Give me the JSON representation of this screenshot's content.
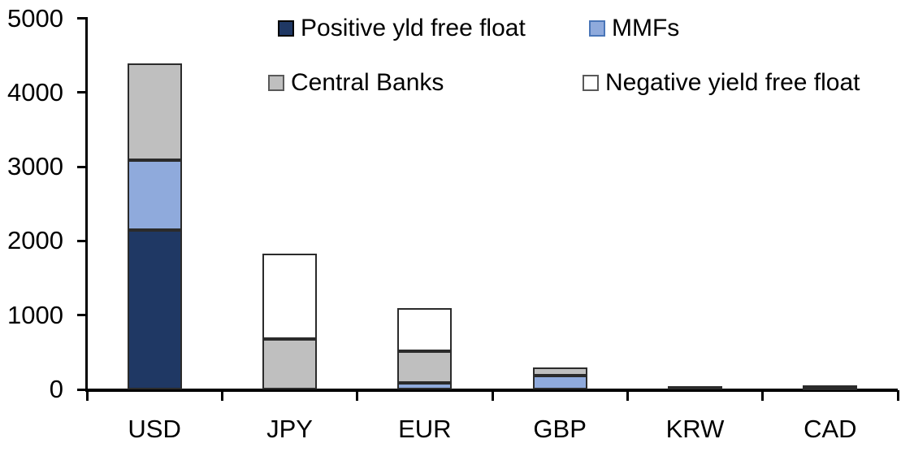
{
  "chart_data": {
    "type": "bar",
    "subtype": "stacked-vertical",
    "title": "",
    "xlabel": "",
    "ylabel": "",
    "categories": [
      "USD",
      "JPY",
      "EUR",
      "GBP",
      "KRW",
      "CAD"
    ],
    "series": [
      {
        "name": "Positive yld free float",
        "color": "#1F3864",
        "swatch_border": "#000000",
        "values": [
          2150,
          0,
          0,
          0,
          40,
          30
        ]
      },
      {
        "name": "MMFs",
        "color": "#8FAADC",
        "swatch_border": "#4A76B8",
        "values": [
          940,
          0,
          90,
          190,
          0,
          0
        ]
      },
      {
        "name": "Central Banks",
        "color": "#BFBFBF",
        "swatch_border": "#595959",
        "values": [
          1300,
          680,
          420,
          110,
          0,
          30
        ]
      },
      {
        "name": "Negative yield free float",
        "color": "#FFFFFF",
        "swatch_border": "#595959",
        "values": [
          0,
          1150,
          590,
          0,
          0,
          0
        ]
      }
    ],
    "totals": [
      4390,
      1830,
      1100,
      300,
      40,
      60
    ],
    "ylim": [
      0,
      5000
    ],
    "yticks": [
      0,
      1000,
      2000,
      3000,
      4000,
      5000
    ],
    "grid": false,
    "legend_position": "top",
    "axis_color": "#000000",
    "segment_border_color": "#2b2b2b"
  }
}
